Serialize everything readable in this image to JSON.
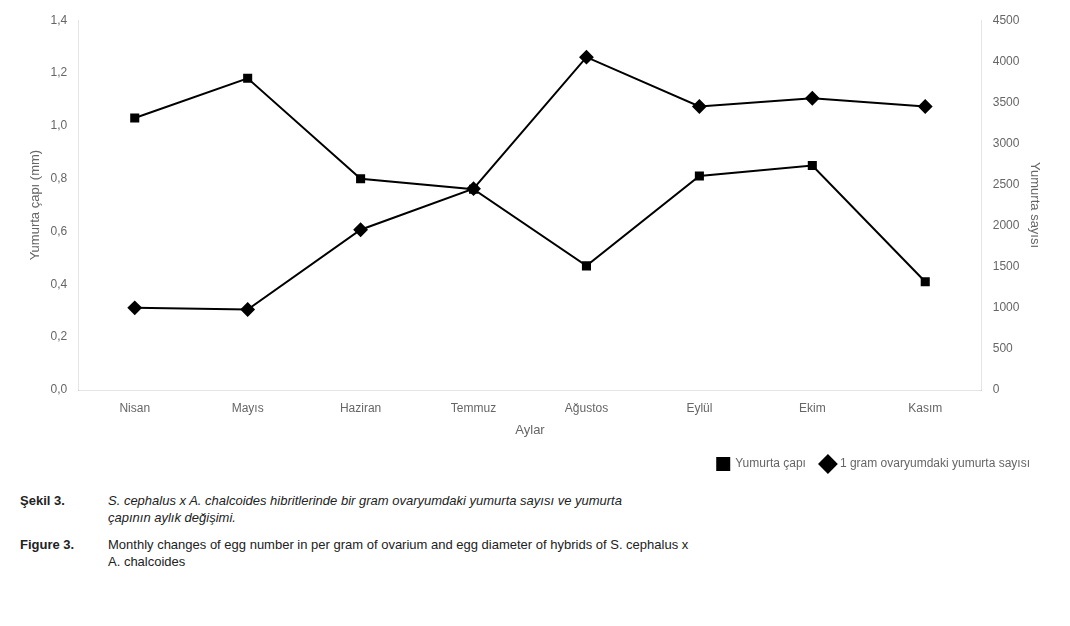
{
  "chart_data": {
    "type": "line",
    "categories": [
      "Nisan",
      "Mayıs",
      "Haziran",
      "Temmuz",
      "Ağustos",
      "Eylül",
      "Ekim",
      "Kasım"
    ],
    "series": [
      {
        "name": "Yumurta çapı",
        "color": "black",
        "marker": "square",
        "values": [
          1.03,
          1.18,
          0.8,
          0.76,
          0.47,
          0.81,
          0.85,
          0.41
        ]
      },
      {
        "name": "1 gram ovaryumdaki yumurta sayısı",
        "color": "black",
        "marker": "diamond",
        "axis": "y2",
        "values": [
          1000,
          980,
          1950,
          2450,
          4050,
          3450,
          3550,
          3450
        ]
      }
    ],
    "xlabel": "Aylar",
    "ylabel": "Yumurta çapı (mm)",
    "y2label": "Yumurta sayısı",
    "ylim": [
      0,
      1.4
    ],
    "yticks": [
      {
        "value": 0,
        "label": "0,0"
      },
      {
        "value": 0.2,
        "label": "0,2"
      },
      {
        "value": 0.4,
        "label": "0,4"
      },
      {
        "value": 0.6,
        "label": "0,6"
      },
      {
        "value": 0.8,
        "label": "0,8"
      },
      {
        "value": 1.0,
        "label": "1,0"
      },
      {
        "value": 1.2,
        "label": "1,2"
      },
      {
        "value": 1.4,
        "label": "1,4"
      }
    ],
    "y2lim": [
      0,
      4500
    ],
    "y2ticks": [
      0,
      500,
      1000,
      1500,
      2000,
      2500,
      3000,
      3500,
      4000,
      4500
    ],
    "grid": false,
    "legend": "lower right",
    "annotations": [
      "Şekil 3.",
      "S. cephalus x A. chalcoides hibritlerinde bir gram ovaryumdaki yumurta sayısı ve yumurta\nçapının aylık değişimi.",
      "Figure 3.",
      "Monthly changes of egg number in per gram of ovarium and egg diameter of hybrids of S. cephalus x\nA. chalcoides"
    ]
  }
}
